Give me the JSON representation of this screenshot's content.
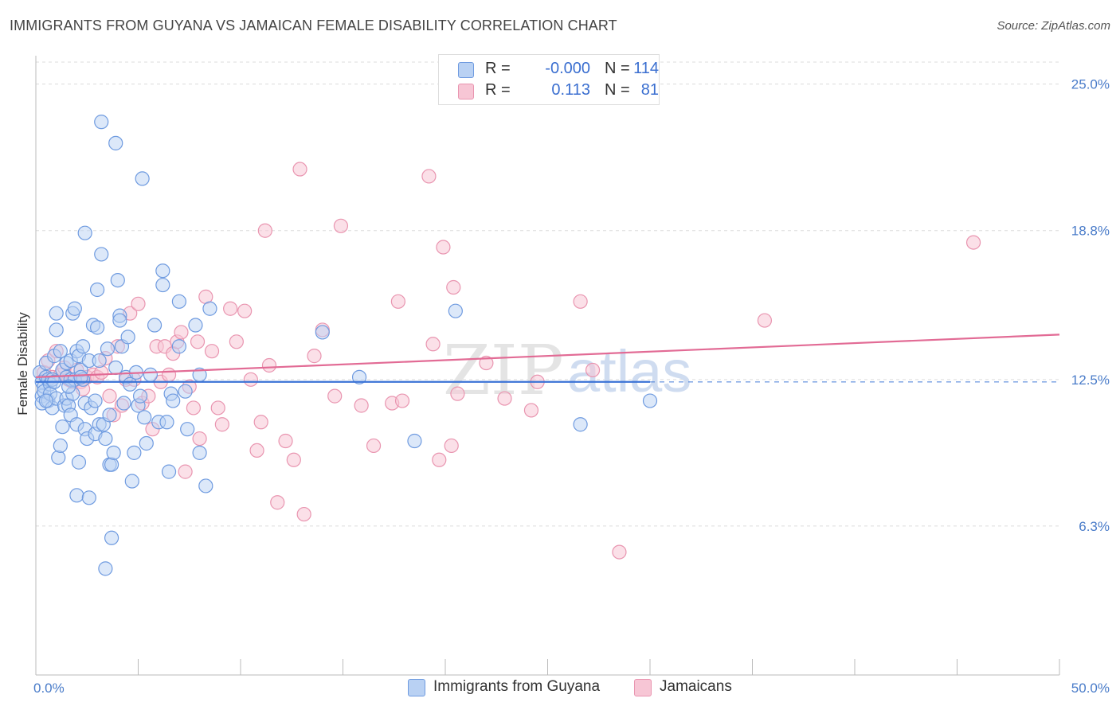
{
  "title": "IMMIGRANTS FROM GUYANA VS JAMAICAN FEMALE DISABILITY CORRELATION CHART",
  "source": "Source: ZipAtlas.com",
  "watermark": {
    "zip": "ZIP",
    "atlas": "atlas"
  },
  "legend": {
    "r_label": "R =",
    "n_label": "N =",
    "series": [
      {
        "r": "-0.000",
        "n": "114",
        "fill": "#b9d1f3",
        "stroke": "#6f9be0"
      },
      {
        "r": "0.113",
        "n": "81",
        "fill": "#f7c6d5",
        "stroke": "#e995b0"
      }
    ]
  },
  "bottom_legend": [
    {
      "label": "Immigrants from Guyana",
      "fill": "#b9d1f3",
      "stroke": "#6f9be0"
    },
    {
      "label": "Jamaicans",
      "fill": "#f7c6d5",
      "stroke": "#e995b0"
    }
  ],
  "chart_data": {
    "type": "scatter",
    "title": "IMMIGRANTS FROM GUYANA VS JAMAICAN FEMALE DISABILITY CORRELATION CHART",
    "xlabel": "",
    "ylabel": "Female Disability",
    "xlim": [
      0,
      50
    ],
    "ylim": [
      0,
      26.2
    ],
    "x_tick_labels": [
      "0.0%",
      "50.0%"
    ],
    "y_ticks": [
      {
        "value": 6.3,
        "label": "6.3%"
      },
      {
        "value": 12.5,
        "label": "12.5%"
      },
      {
        "value": 18.8,
        "label": "18.8%"
      },
      {
        "value": 25.0,
        "label": "25.0%"
      }
    ],
    "grid": "horizontal-dashed",
    "colors": {
      "blue": "#3b73d6",
      "pink": "#e26b95",
      "blue_fill": "#b9d1f3",
      "pink_fill": "#f7c6d5"
    },
    "series": [
      {
        "name": "Immigrants from Guyana",
        "color": "#6f9be0",
        "trend": {
          "x": [
            0,
            30
          ],
          "y": [
            12.4,
            12.4
          ],
          "dashed_to": 50
        },
        "points": [
          [
            0.2,
            12.8
          ],
          [
            0.3,
            12.4
          ],
          [
            0.3,
            11.8
          ],
          [
            0.3,
            11.5
          ],
          [
            0.4,
            12.2
          ],
          [
            0.4,
            12.0
          ],
          [
            0.5,
            13.2
          ],
          [
            0.5,
            12.6
          ],
          [
            0.6,
            12.5
          ],
          [
            0.6,
            11.6
          ],
          [
            0.7,
            12.3
          ],
          [
            0.7,
            11.9
          ],
          [
            0.8,
            12.5
          ],
          [
            0.8,
            11.3
          ],
          [
            0.9,
            13.5
          ],
          [
            0.9,
            12.4
          ],
          [
            1.0,
            11.7
          ],
          [
            1.0,
            14.6
          ],
          [
            1.0,
            15.3
          ],
          [
            1.1,
            9.2
          ],
          [
            1.2,
            13.7
          ],
          [
            1.2,
            9.7
          ],
          [
            1.3,
            12.9
          ],
          [
            1.3,
            10.5
          ],
          [
            1.4,
            11.4
          ],
          [
            1.5,
            12.6
          ],
          [
            1.5,
            13.2
          ],
          [
            1.5,
            11.7
          ],
          [
            1.6,
            11.4
          ],
          [
            1.7,
            12.5
          ],
          [
            1.7,
            11.0
          ],
          [
            1.7,
            13.3
          ],
          [
            1.8,
            15.3
          ],
          [
            1.8,
            11.9
          ],
          [
            1.9,
            15.5
          ],
          [
            1.9,
            12.5
          ],
          [
            2.0,
            13.7
          ],
          [
            2.0,
            10.6
          ],
          [
            2.0,
            7.6
          ],
          [
            2.1,
            9.0
          ],
          [
            2.1,
            13.5
          ],
          [
            2.2,
            12.9
          ],
          [
            2.3,
            13.9
          ],
          [
            2.3,
            12.5
          ],
          [
            2.4,
            10.4
          ],
          [
            2.4,
            11.5
          ],
          [
            2.4,
            18.7
          ],
          [
            2.5,
            10.0
          ],
          [
            2.6,
            13.3
          ],
          [
            2.6,
            7.5
          ],
          [
            2.7,
            11.3
          ],
          [
            2.8,
            14.8
          ],
          [
            2.9,
            11.6
          ],
          [
            2.9,
            10.2
          ],
          [
            3.0,
            16.3
          ],
          [
            3.0,
            14.7
          ],
          [
            3.1,
            10.6
          ],
          [
            3.1,
            13.3
          ],
          [
            3.2,
            17.8
          ],
          [
            3.2,
            23.4
          ],
          [
            3.3,
            10.6
          ],
          [
            3.4,
            10.0
          ],
          [
            3.4,
            4.5
          ],
          [
            3.5,
            13.8
          ],
          [
            3.6,
            11.0
          ],
          [
            3.6,
            8.9
          ],
          [
            3.7,
            8.9
          ],
          [
            3.7,
            5.8
          ],
          [
            3.8,
            9.4
          ],
          [
            3.9,
            13.0
          ],
          [
            3.9,
            22.5
          ],
          [
            4.0,
            16.7
          ],
          [
            4.1,
            15.2
          ],
          [
            4.1,
            15.0
          ],
          [
            4.2,
            13.9
          ],
          [
            4.3,
            11.5
          ],
          [
            4.4,
            12.6
          ],
          [
            4.5,
            14.3
          ],
          [
            4.6,
            12.3
          ],
          [
            4.7,
            8.2
          ],
          [
            4.8,
            9.4
          ],
          [
            4.9,
            12.8
          ],
          [
            5.0,
            11.4
          ],
          [
            5.1,
            11.8
          ],
          [
            5.2,
            21.0
          ],
          [
            5.3,
            10.9
          ],
          [
            5.4,
            9.8
          ],
          [
            5.6,
            12.7
          ],
          [
            5.8,
            14.8
          ],
          [
            6.0,
            10.7
          ],
          [
            6.2,
            17.1
          ],
          [
            6.2,
            16.5
          ],
          [
            6.4,
            10.7
          ],
          [
            6.5,
            8.6
          ],
          [
            6.6,
            11.9
          ],
          [
            6.7,
            11.6
          ],
          [
            7.0,
            13.9
          ],
          [
            7.0,
            15.8
          ],
          [
            7.3,
            12.0
          ],
          [
            7.4,
            10.4
          ],
          [
            7.8,
            14.8
          ],
          [
            8.0,
            12.7
          ],
          [
            8.0,
            9.4
          ],
          [
            8.3,
            8.0
          ],
          [
            8.5,
            15.5
          ],
          [
            14.0,
            14.5
          ],
          [
            15.8,
            12.6
          ],
          [
            18.5,
            9.9
          ],
          [
            20.5,
            15.4
          ],
          [
            26.6,
            10.6
          ],
          [
            30.0,
            11.6
          ],
          [
            0.5,
            11.6
          ],
          [
            1.6,
            12.2
          ],
          [
            2.2,
            12.6
          ]
        ]
      },
      {
        "name": "Jamaicans",
        "color": "#e995b0",
        "trend": {
          "x": [
            0,
            50
          ],
          "y": [
            12.6,
            14.4
          ]
        },
        "points": [
          [
            0.4,
            12.8
          ],
          [
            0.6,
            13.3
          ],
          [
            0.8,
            12.6
          ],
          [
            1.0,
            13.7
          ],
          [
            1.2,
            12.7
          ],
          [
            1.4,
            13.0
          ],
          [
            1.6,
            12.5
          ],
          [
            1.8,
            12.4
          ],
          [
            2.0,
            12.9
          ],
          [
            2.2,
            12.4
          ],
          [
            2.5,
            12.6
          ],
          [
            2.8,
            12.7
          ],
          [
            3.0,
            12.6
          ],
          [
            3.2,
            12.8
          ],
          [
            3.4,
            13.4
          ],
          [
            3.6,
            11.8
          ],
          [
            3.8,
            11.0
          ],
          [
            4.0,
            13.9
          ],
          [
            4.2,
            11.4
          ],
          [
            4.4,
            12.5
          ],
          [
            4.6,
            15.3
          ],
          [
            4.8,
            12.5
          ],
          [
            5.0,
            15.7
          ],
          [
            5.2,
            11.5
          ],
          [
            5.5,
            11.8
          ],
          [
            5.7,
            10.4
          ],
          [
            5.9,
            13.9
          ],
          [
            6.1,
            12.4
          ],
          [
            6.3,
            13.9
          ],
          [
            6.5,
            12.7
          ],
          [
            6.7,
            13.6
          ],
          [
            6.9,
            14.1
          ],
          [
            7.1,
            14.5
          ],
          [
            7.3,
            8.6
          ],
          [
            7.5,
            12.2
          ],
          [
            7.7,
            11.3
          ],
          [
            7.9,
            14.1
          ],
          [
            8.0,
            10.0
          ],
          [
            8.3,
            16.0
          ],
          [
            8.6,
            13.7
          ],
          [
            8.9,
            11.3
          ],
          [
            9.1,
            10.6
          ],
          [
            9.5,
            15.5
          ],
          [
            9.8,
            14.1
          ],
          [
            10.2,
            15.4
          ],
          [
            10.5,
            12.5
          ],
          [
            10.8,
            9.5
          ],
          [
            11.0,
            10.7
          ],
          [
            11.2,
            18.8
          ],
          [
            11.4,
            13.1
          ],
          [
            11.8,
            7.3
          ],
          [
            12.2,
            9.9
          ],
          [
            12.6,
            9.1
          ],
          [
            12.9,
            21.4
          ],
          [
            13.1,
            6.8
          ],
          [
            13.6,
            13.5
          ],
          [
            14.0,
            14.6
          ],
          [
            14.6,
            11.8
          ],
          [
            14.9,
            19.0
          ],
          [
            15.9,
            11.4
          ],
          [
            16.5,
            9.7
          ],
          [
            17.4,
            11.5
          ],
          [
            17.7,
            15.8
          ],
          [
            17.9,
            11.6
          ],
          [
            19.2,
            21.1
          ],
          [
            19.4,
            14.0
          ],
          [
            19.7,
            9.1
          ],
          [
            19.9,
            18.1
          ],
          [
            20.3,
            9.7
          ],
          [
            20.4,
            16.4
          ],
          [
            20.6,
            11.9
          ],
          [
            22.0,
            13.2
          ],
          [
            22.9,
            11.7
          ],
          [
            24.2,
            11.2
          ],
          [
            24.5,
            12.4
          ],
          [
            26.6,
            15.8
          ],
          [
            27.2,
            12.9
          ],
          [
            28.5,
            5.2
          ],
          [
            35.6,
            15.0
          ],
          [
            45.8,
            18.3
          ],
          [
            2.3,
            12.1
          ]
        ]
      }
    ]
  }
}
